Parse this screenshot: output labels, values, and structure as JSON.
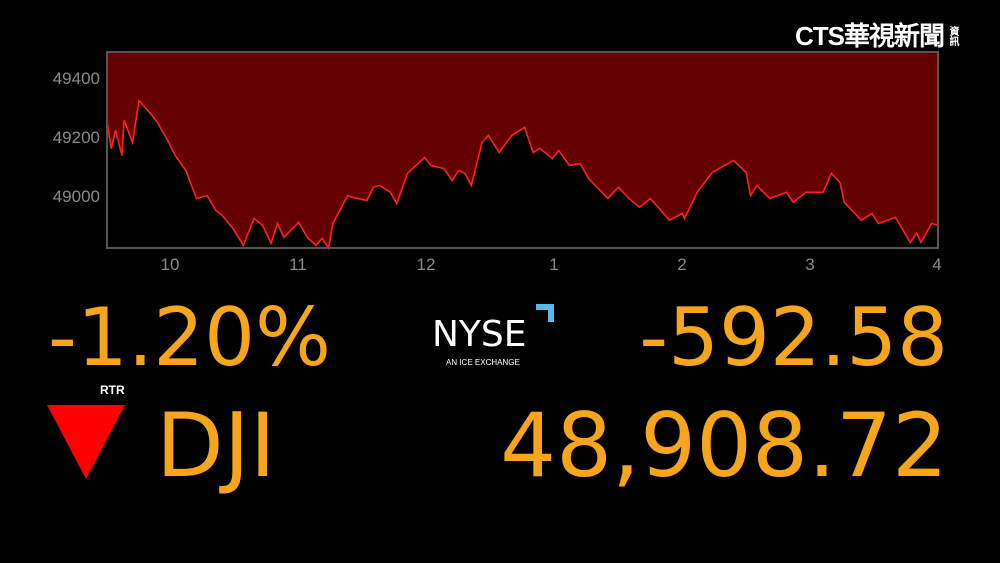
{
  "logo": {
    "text": "CTS華視新聞",
    "sub": "資訊"
  },
  "chart_data": {
    "type": "area",
    "series": [
      {
        "x": [
          "9:30",
          "9:32",
          "9:34",
          "9:37",
          "9:38",
          "9:42",
          "9:45",
          "9:50",
          "9:54",
          "9:59",
          "10:02",
          "10:07",
          "10:12",
          "10:17",
          "10:21",
          "10:24",
          "10:29",
          "10:34",
          "10:39",
          "10:43",
          "10:47",
          "10:50",
          "10:53",
          "11:00",
          "11:04",
          "11:08",
          "11:11",
          "11:14",
          "11:16",
          "11:23",
          "11:25",
          "11:32",
          "11:35",
          "11:38",
          "11:43",
          "11:46",
          "11:51",
          "11:59",
          "12:02",
          "12:08",
          "12:12",
          "12:15",
          "12:18",
          "12:21",
          "12:26",
          "12:29",
          "12:34",
          "12:40",
          "12:46",
          "12:50",
          "12:53",
          "12:59",
          "13:02",
          "13:07",
          "13:12",
          "13:16",
          "13:25",
          "13:30",
          "13:35",
          "13:40",
          "13:45",
          "13:54",
          "14:00",
          "14:01",
          "14:07",
          "14:14",
          "14:24",
          "14:30",
          "14:32",
          "14:35",
          "14:41",
          "14:49",
          "14:52",
          "14:58",
          "15:06",
          "15:10",
          "15:14",
          "15:16",
          "15:24",
          "15:29",
          "15:32",
          "15:40",
          "15:47",
          "15:50",
          "15:52",
          "15:57",
          "16:00"
        ],
        "y": [
          49251,
          49163,
          49224,
          49139,
          49258,
          49183,
          49325,
          49285,
          49247,
          49183,
          49139,
          49088,
          48993,
          49003,
          48953,
          48936,
          48892,
          48834,
          48925,
          48902,
          48841,
          48908,
          48861,
          48912,
          48861,
          48834,
          48858,
          48824,
          48908,
          49003,
          48997,
          48986,
          49031,
          49037,
          49014,
          48976,
          49078,
          49132,
          49105,
          49095,
          49054,
          49088,
          49078,
          49037,
          49183,
          49207,
          49149,
          49207,
          49234,
          49149,
          49163,
          49129,
          49156,
          49105,
          49112,
          49061,
          48993,
          49031,
          48993,
          48963,
          48993,
          48919,
          48942,
          48925,
          49014,
          49081,
          49122,
          49081,
          49003,
          49037,
          48993,
          49014,
          48980,
          49014,
          49014,
          49078,
          49047,
          48980,
          48919,
          48942,
          48908,
          48929,
          48844,
          48875,
          48844,
          48908,
          48902
        ]
      }
    ],
    "xticks": [
      "10",
      "11",
      "12",
      "1",
      "2",
      "3",
      "4"
    ],
    "yticks": [
      "49000",
      "49200",
      "49400"
    ],
    "xlim": [
      "9:30",
      "16:00"
    ],
    "ylim": [
      48825,
      49490
    ],
    "grid": false,
    "line_color": "#ff2020",
    "fill_color": "#650000"
  },
  "quote": {
    "percent_change": "-1.20%",
    "source": "RTR",
    "symbol": "DJI",
    "point_change": "-592.58",
    "last": "48,908.72",
    "direction": "down",
    "value_color": "#f7a51b",
    "down_color": "#ff0000"
  },
  "exchange": {
    "name": "NYSE",
    "tagline": "AN ICE EXCHANGE",
    "accent": "#5bb8ea"
  }
}
